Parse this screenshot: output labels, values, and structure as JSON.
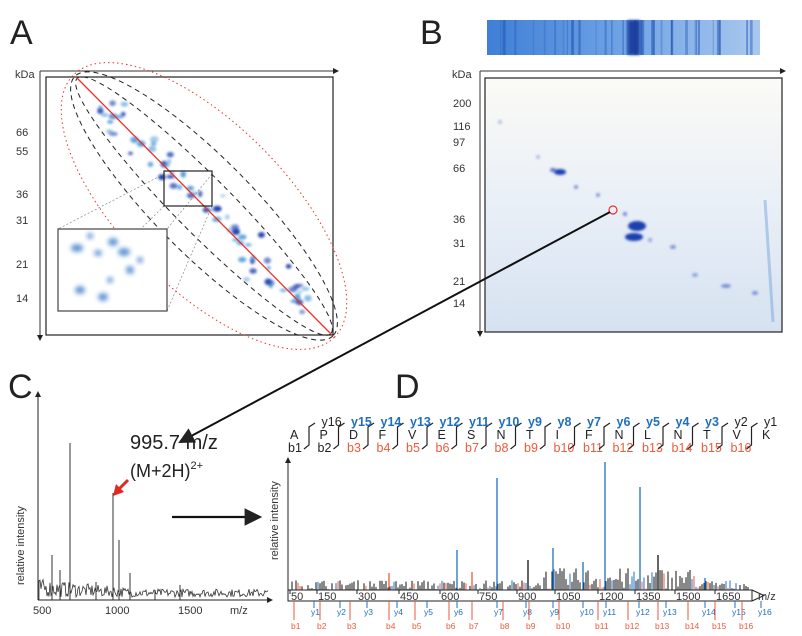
{
  "panels": {
    "a": "A",
    "b": "B",
    "c": "C",
    "d": "D"
  },
  "panel_a": {
    "y_unit": "kDa",
    "y_ticks": [
      "66",
      "55",
      "36",
      "31",
      "21",
      "14"
    ]
  },
  "panel_b": {
    "y_unit": "kDa",
    "y_ticks": [
      "200",
      "116",
      "97",
      "66",
      "36",
      "31",
      "21",
      "14"
    ]
  },
  "panel_c": {
    "ylabel": "relative intensity",
    "x_ticks": [
      "500",
      "1000",
      "1500"
    ],
    "xlabel": "m/z",
    "precursor": "995.7 m/z",
    "ion": "(M+2H)",
    "charge": "2+"
  },
  "panel_d": {
    "ylabel": "relative intensity",
    "xlabel": "m/z",
    "x_ticks": [
      "50",
      "150",
      "300",
      "450",
      "600",
      "750",
      "900",
      "1050",
      "1200",
      "1350",
      "1500",
      "1650"
    ],
    "sequence": [
      "A",
      "P",
      "D",
      "F",
      "V",
      "E",
      "S",
      "N",
      "T",
      "I",
      "F",
      "N",
      "L",
      "N",
      "T",
      "V",
      "K"
    ],
    "y_ions": [
      "y16",
      "y15",
      "y14",
      "y13",
      "y12",
      "y11",
      "y10",
      "y9",
      "y8",
      "y7",
      "y6",
      "y5",
      "y4",
      "y3",
      "y2",
      "y1"
    ],
    "b_ions": [
      "b1",
      "b2",
      "b3",
      "b4",
      "b5",
      "b6",
      "b7",
      "b8",
      "b9",
      "b10",
      "b11",
      "b12",
      "b13",
      "b14",
      "b15",
      "b16"
    ],
    "y_marks": [
      "y1",
      "y2",
      "y3",
      "y4",
      "y5",
      "y6",
      "y7",
      "y8",
      "y9",
      "y10",
      "y11",
      "y12",
      "y13",
      "y14",
      "y15",
      "y16"
    ],
    "b_marks": [
      "b1",
      "b2",
      "b3",
      "b4",
      "b5",
      "b6",
      "b7",
      "b8",
      "b9",
      "b10",
      "b11",
      "b12",
      "b13",
      "b14",
      "b15",
      "b16"
    ]
  },
  "colors": {
    "y_ion": "#1f6fc0",
    "b_ion": "#ee5a3a",
    "gel_spot": "#1a3fb0",
    "red_line": "#e8322a"
  }
}
